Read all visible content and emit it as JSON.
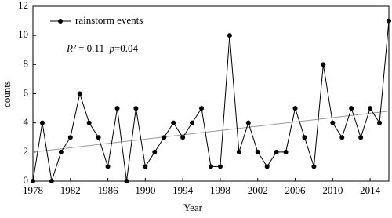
{
  "chart_data": {
    "type": "line",
    "x_label": "Year",
    "y_label": "counts",
    "x": [
      1978,
      1979,
      1980,
      1981,
      1982,
      1983,
      1984,
      1985,
      1986,
      1987,
      1988,
      1989,
      1990,
      1991,
      1992,
      1993,
      1994,
      1995,
      1996,
      1997,
      1998,
      1999,
      2000,
      2001,
      2002,
      2003,
      2004,
      2005,
      2006,
      2007,
      2008,
      2009,
      2010,
      2011,
      2012,
      2013,
      2014,
      2015,
      2016
    ],
    "series": [
      {
        "name": "rainstorm events",
        "color": "#000000",
        "values": [
          0,
          4,
          0,
          2,
          3,
          6,
          4,
          3,
          1,
          5,
          0,
          5,
          1,
          2,
          3,
          4,
          3,
          4,
          5,
          1,
          1,
          10,
          2,
          4,
          2,
          1,
          2,
          2,
          5,
          3,
          1,
          8,
          4,
          3,
          5,
          3,
          5,
          4,
          11
        ]
      }
    ],
    "trendline": {
      "x": [
        1978,
        2016
      ],
      "values": [
        2,
        4.8
      ],
      "color": "#999999"
    },
    "annotation": [
      "R²",
      " = 0.11  ",
      "p",
      "=0.04"
    ],
    "xlim": [
      1978,
      2016
    ],
    "xticks": [
      1978,
      1982,
      1986,
      1990,
      1994,
      1998,
      2002,
      2006,
      2010,
      2014
    ],
    "ylim": [
      0,
      12
    ],
    "yticks": [
      0,
      2,
      4,
      6,
      8,
      10,
      12
    ],
    "legend": "upper-left"
  }
}
